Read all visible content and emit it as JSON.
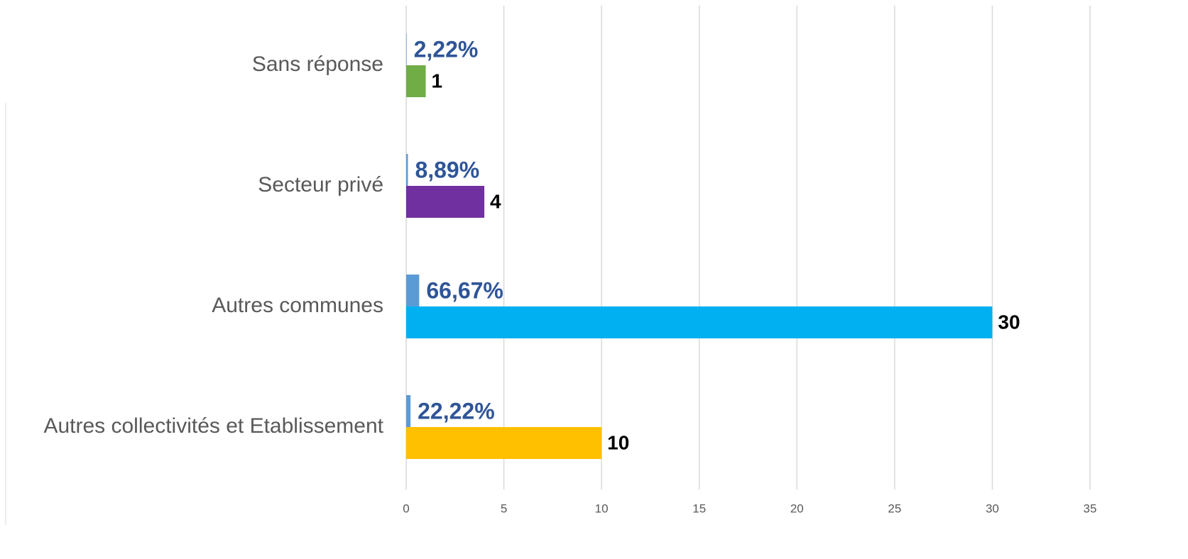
{
  "chart_data": {
    "type": "hbar",
    "categories": [
      "Sans réponse",
      "Secteur privé",
      "Autres communes",
      "Autres collectivités et Etablissement"
    ],
    "series": [
      {
        "color": "#5b9bd5",
        "values": [
          0.0222,
          0.0889,
          0.6667,
          0.2222
        ],
        "value_labels": [
          "2,22%",
          "8,89%",
          "66,67%",
          "22,22%"
        ]
      },
      {
        "colors": [
          "#70ad47",
          "#7030a0",
          "#00b0f0",
          "#ffc000"
        ],
        "values": [
          1,
          4,
          30,
          10
        ]
      }
    ],
    "xlim": [
      0,
      35
    ],
    "xticks": [
      0,
      5,
      10,
      15,
      20,
      25,
      30,
      35
    ],
    "grid": true
  }
}
